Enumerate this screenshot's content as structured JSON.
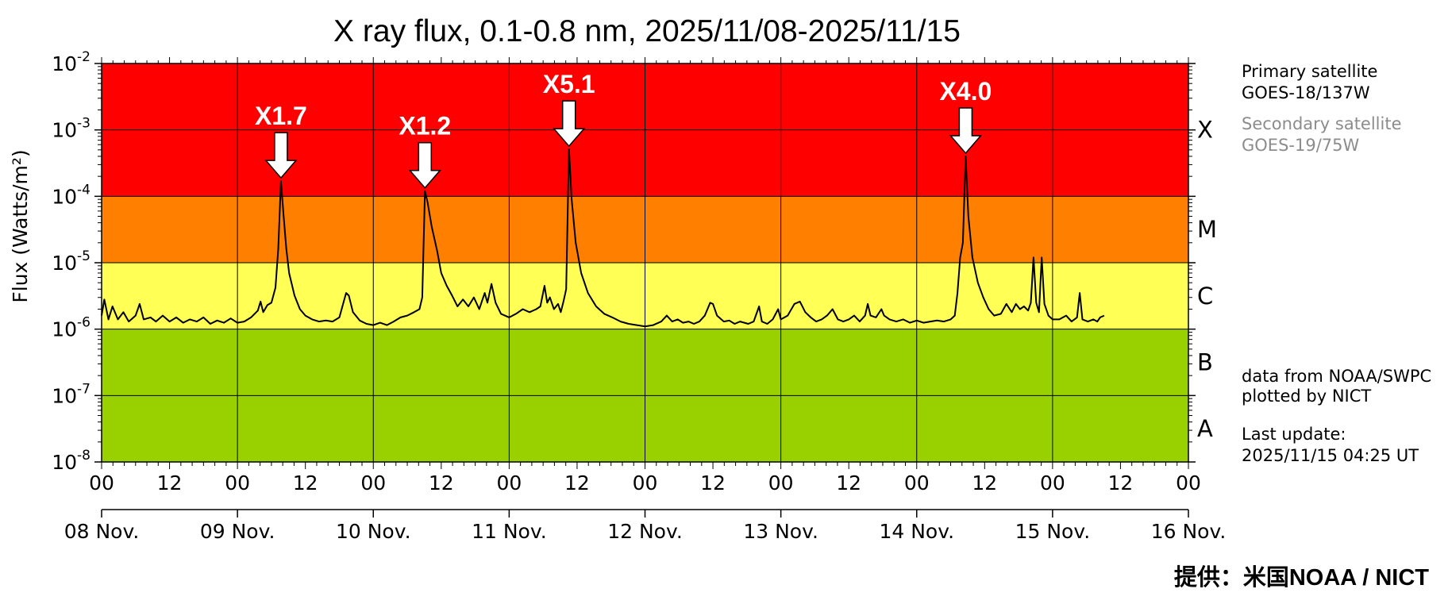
{
  "chart_data": {
    "type": "line",
    "title": "X ray flux, 0.1-0.8 nm, 2025/11/08-2025/11/15",
    "ylabel": "Flux (Watts/m²)",
    "yscale": "log",
    "ylim": [
      1e-08,
      0.01
    ],
    "y_ticks": [
      {
        "base": "10",
        "exp": "-8"
      },
      {
        "base": "10",
        "exp": "-7"
      },
      {
        "base": "10",
        "exp": "-6"
      },
      {
        "base": "10",
        "exp": "-5"
      },
      {
        "base": "10",
        "exp": "-4"
      },
      {
        "base": "10",
        "exp": "-3"
      },
      {
        "base": "10",
        "exp": "-2"
      }
    ],
    "x_unit": "days since 2025-11-08 00:00 UT",
    "xlim": [
      0,
      8
    ],
    "x_tick_labels": [
      "00",
      "12",
      "00",
      "12",
      "00",
      "12",
      "00",
      "12",
      "00",
      "12",
      "00",
      "12",
      "00",
      "12",
      "00",
      "12",
      "00"
    ],
    "date_labels": [
      "08 Nov.",
      "09 Nov.",
      "10 Nov.",
      "11 Nov.",
      "12 Nov.",
      "13 Nov.",
      "14 Nov.",
      "15 Nov.",
      "16 Nov."
    ],
    "bands": [
      {
        "class": "A",
        "min": 1e-08,
        "max": 1e-07,
        "color": "#99d100"
      },
      {
        "class": "B",
        "min": 1e-07,
        "max": 1e-06,
        "color": "#99d100"
      },
      {
        "class": "C",
        "min": 1e-06,
        "max": 1e-05,
        "color": "#ffff55"
      },
      {
        "class": "M",
        "min": 1e-05,
        "max": 0.0001,
        "color": "#ff7f00"
      },
      {
        "class": "X",
        "min": 0.0001,
        "max": 0.01,
        "color": "#ff0000"
      }
    ],
    "annotations": [
      {
        "label": "X1.7",
        "x": 1.32,
        "y": 0.00017
      },
      {
        "label": "X1.2",
        "x": 2.38,
        "y": 0.00012
      },
      {
        "label": "X5.1",
        "x": 3.44,
        "y": 0.00051
      },
      {
        "label": "X4.0",
        "x": 6.36,
        "y": 0.0004
      }
    ],
    "series": [
      {
        "color": "#000000",
        "points": [
          [
            0.0,
            1.6e-06
          ],
          [
            0.02,
            2.8e-06
          ],
          [
            0.05,
            1.4e-06
          ],
          [
            0.08,
            2.2e-06
          ],
          [
            0.12,
            1.4e-06
          ],
          [
            0.16,
            1.8e-06
          ],
          [
            0.2,
            1.3e-06
          ],
          [
            0.25,
            1.6e-06
          ],
          [
            0.28,
            2.4e-06
          ],
          [
            0.31,
            1.4e-06
          ],
          [
            0.36,
            1.5e-06
          ],
          [
            0.4,
            1.3e-06
          ],
          [
            0.45,
            1.6e-06
          ],
          [
            0.5,
            1.3e-06
          ],
          [
            0.55,
            1.5e-06
          ],
          [
            0.6,
            1.25e-06
          ],
          [
            0.65,
            1.4e-06
          ],
          [
            0.7,
            1.3e-06
          ],
          [
            0.75,
            1.5e-06
          ],
          [
            0.8,
            1.2e-06
          ],
          [
            0.85,
            1.35e-06
          ],
          [
            0.9,
            1.25e-06
          ],
          [
            0.95,
            1.45e-06
          ],
          [
            1.0,
            1.25e-06
          ],
          [
            1.05,
            1.3e-06
          ],
          [
            1.1,
            1.5e-06
          ],
          [
            1.15,
            1.9e-06
          ],
          [
            1.17,
            2.6e-06
          ],
          [
            1.19,
            1.8e-06
          ],
          [
            1.22,
            2.3e-06
          ],
          [
            1.25,
            2.5e-06
          ],
          [
            1.28,
            4.2e-06
          ],
          [
            1.3,
            1.6e-05
          ],
          [
            1.32,
            0.00017
          ],
          [
            1.34,
            5e-05
          ],
          [
            1.36,
            1.6e-05
          ],
          [
            1.38,
            7e-06
          ],
          [
            1.42,
            3.2e-06
          ],
          [
            1.46,
            2e-06
          ],
          [
            1.5,
            1.6e-06
          ],
          [
            1.55,
            1.4e-06
          ],
          [
            1.6,
            1.3e-06
          ],
          [
            1.65,
            1.35e-06
          ],
          [
            1.7,
            1.3e-06
          ],
          [
            1.75,
            1.5e-06
          ],
          [
            1.8,
            3.5e-06
          ],
          [
            1.82,
            3.2e-06
          ],
          [
            1.85,
            1.8e-06
          ],
          [
            1.9,
            1.35e-06
          ],
          [
            1.95,
            1.2e-06
          ],
          [
            2.0,
            1.15e-06
          ],
          [
            2.05,
            1.25e-06
          ],
          [
            2.1,
            1.15e-06
          ],
          [
            2.15,
            1.3e-06
          ],
          [
            2.2,
            1.5e-06
          ],
          [
            2.25,
            1.6e-06
          ],
          [
            2.3,
            1.8e-06
          ],
          [
            2.34,
            2e-06
          ],
          [
            2.36,
            3e-06
          ],
          [
            2.38,
            0.00012
          ],
          [
            2.4,
            8e-05
          ],
          [
            2.43,
            3.5e-05
          ],
          [
            2.47,
            1.5e-05
          ],
          [
            2.5,
            7e-06
          ],
          [
            2.54,
            4.5e-06
          ],
          [
            2.58,
            3.2e-06
          ],
          [
            2.62,
            2.2e-06
          ],
          [
            2.66,
            2.8e-06
          ],
          [
            2.7,
            2.2e-06
          ],
          [
            2.74,
            3e-06
          ],
          [
            2.78,
            2e-06
          ],
          [
            2.82,
            3.5e-06
          ],
          [
            2.84,
            2.5e-06
          ],
          [
            2.87,
            4.8e-06
          ],
          [
            2.9,
            2.5e-06
          ],
          [
            2.94,
            1.7e-06
          ],
          [
            3.0,
            1.5e-06
          ],
          [
            3.05,
            1.7e-06
          ],
          [
            3.1,
            2e-06
          ],
          [
            3.15,
            1.8e-06
          ],
          [
            3.2,
            2e-06
          ],
          [
            3.23,
            2.2e-06
          ],
          [
            3.26,
            4.5e-06
          ],
          [
            3.28,
            2.5e-06
          ],
          [
            3.3,
            3e-06
          ],
          [
            3.33,
            2e-06
          ],
          [
            3.36,
            2.4e-06
          ],
          [
            3.38,
            1.8e-06
          ],
          [
            3.4,
            2.6e-06
          ],
          [
            3.42,
            4e-06
          ],
          [
            3.44,
            0.00051
          ],
          [
            3.46,
            9e-05
          ],
          [
            3.49,
            2e-05
          ],
          [
            3.53,
            7e-06
          ],
          [
            3.58,
            3.5e-06
          ],
          [
            3.64,
            2.2e-06
          ],
          [
            3.7,
            1.7e-06
          ],
          [
            3.76,
            1.5e-06
          ],
          [
            3.82,
            1.3e-06
          ],
          [
            3.88,
            1.2e-06
          ],
          [
            3.94,
            1.15e-06
          ],
          [
            4.0,
            1.1e-06
          ],
          [
            4.06,
            1.15e-06
          ],
          [
            4.12,
            1.3e-06
          ],
          [
            4.16,
            1.6e-06
          ],
          [
            4.2,
            1.3e-06
          ],
          [
            4.24,
            1.4e-06
          ],
          [
            4.28,
            1.25e-06
          ],
          [
            4.32,
            1.3e-06
          ],
          [
            4.36,
            1.2e-06
          ],
          [
            4.4,
            1.3e-06
          ],
          [
            4.44,
            1.6e-06
          ],
          [
            4.48,
            2.5e-06
          ],
          [
            4.5,
            2.4e-06
          ],
          [
            4.53,
            1.6e-06
          ],
          [
            4.58,
            1.3e-06
          ],
          [
            4.62,
            1.35e-06
          ],
          [
            4.66,
            1.2e-06
          ],
          [
            4.7,
            1.3e-06
          ],
          [
            4.76,
            1.2e-06
          ],
          [
            4.8,
            1.3e-06
          ],
          [
            4.84,
            2.2e-06
          ],
          [
            4.86,
            1.3e-06
          ],
          [
            4.9,
            1.2e-06
          ],
          [
            4.94,
            1.4e-06
          ],
          [
            4.98,
            2e-06
          ],
          [
            5.0,
            1.4e-06
          ],
          [
            5.05,
            1.6e-06
          ],
          [
            5.1,
            2.4e-06
          ],
          [
            5.14,
            2.6e-06
          ],
          [
            5.18,
            1.8e-06
          ],
          [
            5.22,
            1.5e-06
          ],
          [
            5.26,
            1.3e-06
          ],
          [
            5.3,
            1.4e-06
          ],
          [
            5.34,
            1.6e-06
          ],
          [
            5.38,
            2e-06
          ],
          [
            5.42,
            1.4e-06
          ],
          [
            5.46,
            1.3e-06
          ],
          [
            5.5,
            1.4e-06
          ],
          [
            5.54,
            1.6e-06
          ],
          [
            5.58,
            1.3e-06
          ],
          [
            5.62,
            1.6e-06
          ],
          [
            5.64,
            2.4e-06
          ],
          [
            5.66,
            1.6e-06
          ],
          [
            5.7,
            1.5e-06
          ],
          [
            5.74,
            2e-06
          ],
          [
            5.76,
            1.6e-06
          ],
          [
            5.8,
            1.4e-06
          ],
          [
            5.85,
            1.3e-06
          ],
          [
            5.9,
            1.4e-06
          ],
          [
            5.95,
            1.25e-06
          ],
          [
            6.0,
            1.35e-06
          ],
          [
            6.05,
            1.25e-06
          ],
          [
            6.1,
            1.3e-06
          ],
          [
            6.15,
            1.35e-06
          ],
          [
            6.2,
            1.3e-06
          ],
          [
            6.25,
            1.4e-06
          ],
          [
            6.28,
            1.6e-06
          ],
          [
            6.3,
            3.5e-06
          ],
          [
            6.32,
            1.2e-05
          ],
          [
            6.34,
            2e-05
          ],
          [
            6.36,
            0.0004
          ],
          [
            6.38,
            5e-05
          ],
          [
            6.41,
            1.2e-05
          ],
          [
            6.45,
            5e-06
          ],
          [
            6.49,
            3e-06
          ],
          [
            6.53,
            2e-06
          ],
          [
            6.57,
            1.6e-06
          ],
          [
            6.62,
            1.7e-06
          ],
          [
            6.66,
            2.4e-06
          ],
          [
            6.7,
            1.8e-06
          ],
          [
            6.73,
            2.4e-06
          ],
          [
            6.76,
            2e-06
          ],
          [
            6.79,
            2.2e-06
          ],
          [
            6.82,
            1.9e-06
          ],
          [
            6.84,
            2.5e-06
          ],
          [
            6.86,
            1.2e-05
          ],
          [
            6.88,
            2.5e-06
          ],
          [
            6.9,
            1.8e-06
          ],
          [
            6.92,
            1.2e-05
          ],
          [
            6.94,
            2.4e-06
          ],
          [
            6.97,
            1.6e-06
          ],
          [
            7.0,
            1.4e-06
          ],
          [
            7.05,
            1.4e-06
          ],
          [
            7.1,
            1.6e-06
          ],
          [
            7.14,
            1.3e-06
          ],
          [
            7.18,
            1.5e-06
          ],
          [
            7.2,
            3.5e-06
          ],
          [
            7.22,
            1.4e-06
          ],
          [
            7.26,
            1.3e-06
          ],
          [
            7.3,
            1.4e-06
          ],
          [
            7.33,
            1.3e-06
          ],
          [
            7.35,
            1.5e-06
          ],
          [
            7.38,
            1.6e-06
          ]
        ]
      }
    ]
  },
  "side_notes": {
    "primary_label": "Primary satellite",
    "primary_sat": "GOES-18/137W",
    "secondary_label": "Secondary satellite",
    "secondary_sat": "GOES-19/75W",
    "source_line1": "data from NOAA/SWPC",
    "source_line2": "plotted by NICT",
    "update_label": "Last update:",
    "update_time": "2025/11/15 04:25 UT"
  },
  "credit": "提供：米国NOAA / NICT"
}
